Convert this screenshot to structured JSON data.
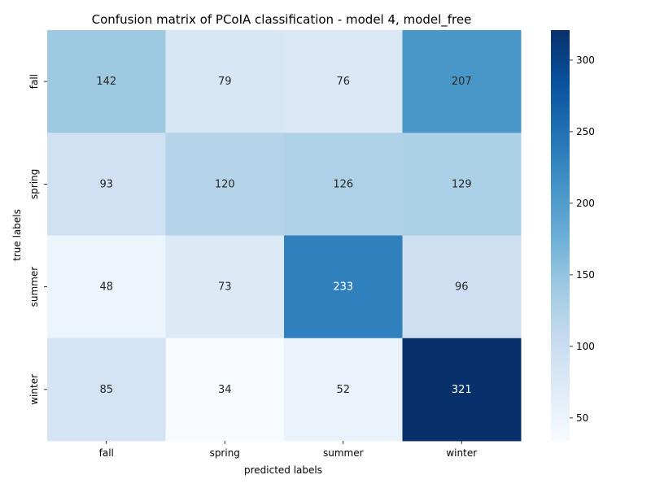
{
  "chart_data": {
    "type": "heatmap",
    "title": "Confusion matrix of PCoIA classification - model 4, model_free",
    "xlabel": "predicted labels",
    "ylabel": "true labels",
    "x_categories": [
      "fall",
      "spring",
      "summer",
      "winter"
    ],
    "y_categories": [
      "fall",
      "spring",
      "summer",
      "winter"
    ],
    "values": [
      [
        142,
        79,
        76,
        207
      ],
      [
        93,
        120,
        126,
        129
      ],
      [
        48,
        73,
        233,
        96
      ],
      [
        85,
        34,
        52,
        321
      ]
    ],
    "colormap": "Blues",
    "vmin": 34,
    "vmax": 321,
    "colorbar_ticks": [
      50,
      100,
      150,
      200,
      250,
      300
    ],
    "annotation_text_color_light": "#ffffff",
    "annotation_text_color_dark": "#262626"
  }
}
